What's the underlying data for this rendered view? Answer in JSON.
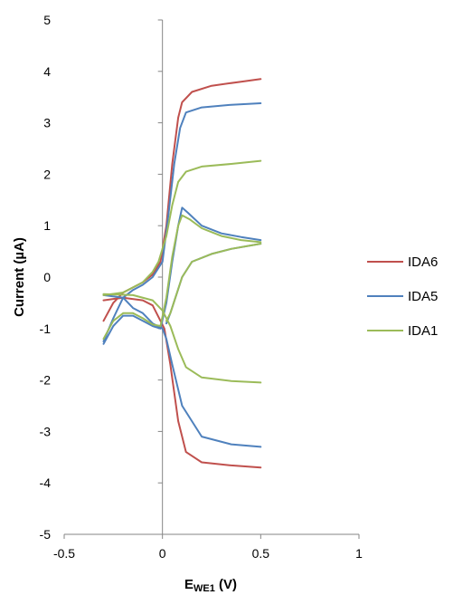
{
  "chart_data": {
    "type": "line",
    "xlabel_main": "E",
    "xlabel_sub": "WE1",
    "xlabel_tail": " (V)",
    "ylabel": "Current (µA)",
    "xlim": [
      -0.5,
      1
    ],
    "ylim": [
      -5,
      5
    ],
    "xticks": [
      "-0.5",
      "0",
      "0.5",
      "1"
    ],
    "yticks": [
      "5",
      "4",
      "3",
      "2",
      "1",
      "0",
      "-1",
      "-2",
      "-3",
      "-4",
      "-5"
    ],
    "grid": false,
    "legend_position": "right",
    "series": [
      {
        "name": "IDA6",
        "color": "#c0504d",
        "forward": [
          [
            -0.3,
            -0.85
          ],
          [
            -0.25,
            -0.5
          ],
          [
            -0.2,
            -0.3
          ],
          [
            -0.15,
            -0.2
          ],
          [
            -0.1,
            -0.1
          ],
          [
            -0.05,
            0.05
          ],
          [
            -0.01,
            0.3
          ],
          [
            0.02,
            1.0
          ],
          [
            0.05,
            2.2
          ],
          [
            0.08,
            3.1
          ],
          [
            0.1,
            3.4
          ],
          [
            0.15,
            3.6
          ],
          [
            0.25,
            3.72
          ],
          [
            0.4,
            3.8
          ],
          [
            0.5,
            3.85
          ]
        ],
        "reverse": [
          [
            0.5,
            -3.7
          ],
          [
            0.35,
            -3.66
          ],
          [
            0.2,
            -3.6
          ],
          [
            0.12,
            -3.4
          ],
          [
            0.08,
            -2.8
          ],
          [
            0.04,
            -1.7
          ],
          [
            0.01,
            -1.0
          ],
          [
            -0.05,
            -0.55
          ],
          [
            -0.1,
            -0.45
          ],
          [
            -0.2,
            -0.4
          ],
          [
            -0.3,
            -0.45
          ]
        ]
      },
      {
        "name": "IDA5",
        "color": "#4f81bd",
        "forward": [
          [
            -0.3,
            -1.25
          ],
          [
            -0.25,
            -0.8
          ],
          [
            -0.2,
            -0.4
          ],
          [
            -0.15,
            -0.25
          ],
          [
            -0.1,
            -0.15
          ],
          [
            -0.05,
            0.0
          ],
          [
            0.0,
            0.3
          ],
          [
            0.03,
            1.2
          ],
          [
            0.06,
            2.2
          ],
          [
            0.09,
            2.9
          ],
          [
            0.12,
            3.2
          ],
          [
            0.2,
            3.3
          ],
          [
            0.35,
            3.35
          ],
          [
            0.5,
            3.38
          ]
        ],
        "reverse": [
          [
            0.5,
            -3.3
          ],
          [
            0.35,
            -3.25
          ],
          [
            0.2,
            -3.1
          ],
          [
            0.1,
            -2.5
          ],
          [
            0.05,
            -1.7
          ],
          [
            0.02,
            -1.2
          ],
          [
            0.0,
            -1.0
          ],
          [
            -0.05,
            -0.9
          ],
          [
            -0.1,
            -0.7
          ],
          [
            -0.15,
            -0.6
          ],
          [
            -0.2,
            -0.4
          ],
          [
            -0.3,
            -0.35
          ]
        ],
        "forward2": [
          [
            -0.3,
            -1.3
          ],
          [
            -0.25,
            -0.95
          ],
          [
            -0.2,
            -0.75
          ],
          [
            -0.15,
            -0.75
          ],
          [
            -0.1,
            -0.85
          ],
          [
            -0.05,
            -0.95
          ],
          [
            -0.01,
            -1.0
          ],
          [
            0.02,
            -0.5
          ],
          [
            0.05,
            0.3
          ],
          [
            0.08,
            1.0
          ],
          [
            0.1,
            1.35
          ],
          [
            0.13,
            1.25
          ],
          [
            0.2,
            1.0
          ],
          [
            0.3,
            0.85
          ],
          [
            0.4,
            0.78
          ],
          [
            0.5,
            0.72
          ]
        ],
        "reverse2": [
          [
            0.5,
            0.65
          ],
          [
            0.35,
            0.55
          ],
          [
            0.25,
            0.45
          ],
          [
            0.15,
            0.3
          ],
          [
            0.1,
            0.0
          ],
          [
            0.07,
            -0.35
          ],
          [
            0.04,
            -0.7
          ],
          [
            0.02,
            -0.9
          ]
        ]
      },
      {
        "name": "IDA1",
        "color": "#9bbb59",
        "forward": [
          [
            -0.3,
            -1.2
          ],
          [
            -0.25,
            -0.85
          ],
          [
            -0.2,
            -0.7
          ],
          [
            -0.15,
            -0.7
          ],
          [
            -0.1,
            -0.8
          ],
          [
            -0.05,
            -0.92
          ],
          [
            -0.01,
            -0.95
          ],
          [
            0.02,
            -0.4
          ],
          [
            0.05,
            0.4
          ],
          [
            0.08,
            1.0
          ],
          [
            0.1,
            1.2
          ],
          [
            0.14,
            1.12
          ],
          [
            0.2,
            0.95
          ],
          [
            0.3,
            0.8
          ],
          [
            0.4,
            0.72
          ],
          [
            0.5,
            0.68
          ]
        ],
        "reverse": [
          [
            0.5,
            0.65
          ],
          [
            0.35,
            0.55
          ],
          [
            0.25,
            0.45
          ],
          [
            0.15,
            0.3
          ],
          [
            0.1,
            0.0
          ],
          [
            0.07,
            -0.35
          ],
          [
            0.04,
            -0.7
          ],
          [
            0.02,
            -0.85
          ]
        ],
        "forward2": [
          [
            -0.3,
            -0.35
          ],
          [
            -0.2,
            -0.3
          ],
          [
            -0.1,
            -0.1
          ],
          [
            -0.05,
            0.1
          ],
          [
            -0.02,
            0.3
          ],
          [
            0.02,
            0.8
          ],
          [
            0.05,
            1.4
          ],
          [
            0.08,
            1.85
          ],
          [
            0.12,
            2.05
          ],
          [
            0.2,
            2.15
          ],
          [
            0.35,
            2.2
          ],
          [
            0.5,
            2.26
          ]
        ],
        "reverse2": [
          [
            0.5,
            -2.05
          ],
          [
            0.35,
            -2.02
          ],
          [
            0.2,
            -1.95
          ],
          [
            0.12,
            -1.75
          ],
          [
            0.08,
            -1.4
          ],
          [
            0.04,
            -0.95
          ],
          [
            0.0,
            -0.65
          ],
          [
            -0.05,
            -0.45
          ],
          [
            -0.15,
            -0.35
          ],
          [
            -0.3,
            -0.33
          ]
        ]
      }
    ]
  }
}
